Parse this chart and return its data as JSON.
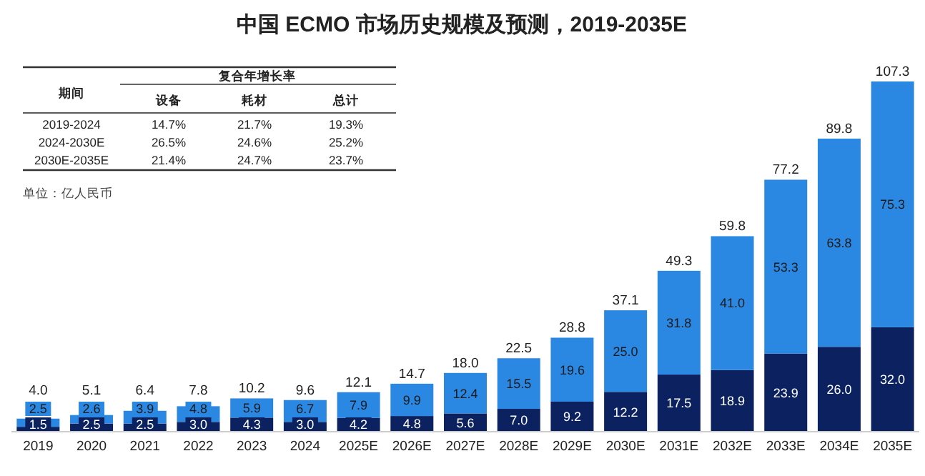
{
  "chart_data": {
    "type": "bar",
    "stacked": true,
    "title": "中国 ECMO 市场历史规模及预测，2019-2035E",
    "categories": [
      "2019",
      "2020",
      "2021",
      "2022",
      "2023",
      "2024",
      "2025E",
      "2026E",
      "2027E",
      "2028E",
      "2029E",
      "2030E",
      "2031E",
      "2032E",
      "2033E",
      "2034E",
      "2035E"
    ],
    "series": [
      {
        "color": "#0b2160",
        "values": [
          1.5,
          2.5,
          2.5,
          3.0,
          4.3,
          3.0,
          4.2,
          4.8,
          5.6,
          7.0,
          9.2,
          12.2,
          17.5,
          18.9,
          23.9,
          26.0,
          32.0
        ],
        "value_labels": [
          "1.5",
          "2.5",
          "2.5",
          "3.0",
          "4.3",
          "3.0",
          "4.2",
          "4.8",
          "5.6",
          "7.0",
          "9.2",
          "12.2",
          "17.5",
          "18.9",
          "23.9",
          "26.0",
          "32.0"
        ]
      },
      {
        "color": "#2b88e2",
        "values": [
          2.5,
          2.6,
          3.9,
          4.8,
          5.9,
          6.7,
          7.9,
          9.9,
          12.4,
          15.5,
          19.6,
          25.0,
          31.8,
          41.0,
          53.3,
          63.8,
          75.3
        ],
        "value_labels": [
          "2.5",
          "2.6",
          "3.9",
          "4.8",
          "5.9",
          "6.7",
          "7.9",
          "9.9",
          "12.4",
          "15.5",
          "19.6",
          "25.0",
          "31.8",
          "41.0",
          "53.3",
          "63.8",
          "75.3"
        ]
      }
    ],
    "totals": [
      "4.0",
      "5.1",
      "6.4",
      "7.8",
      "10.2",
      "9.6",
      "12.1",
      "14.7",
      "18.0",
      "22.5",
      "28.8",
      "37.1",
      "49.3",
      "59.8",
      "77.2",
      "89.8",
      "107.3"
    ],
    "tick_labels": "x",
    "annotations": [
      "期间",
      "复合年增长率",
      "设备",
      "耗材",
      "总计",
      "2019-2024",
      "14.7%",
      "21.7%",
      "19.3%",
      "2024-2030E",
      "26.5%",
      "24.6%",
      "25.2%",
      "2030E-2035E",
      "21.4%",
      "24.7%",
      "23.7%",
      "单位：亿人民币"
    ]
  }
}
